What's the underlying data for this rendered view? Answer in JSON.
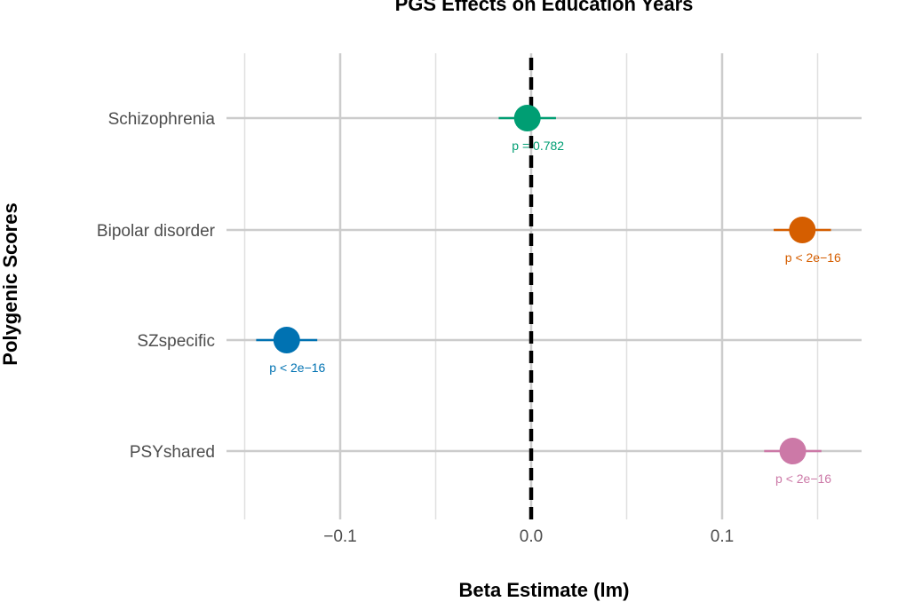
{
  "chart_data": {
    "type": "scatter",
    "title": "PGS Effects on Education Years",
    "xlabel": "Beta Estimate (lm)",
    "ylabel": "Polygenic Scores",
    "xlim": [
      -0.15,
      0.172
    ],
    "xticks": [
      -0.1,
      0.0,
      0.1
    ],
    "xtick_labels": [
      "−0.1",
      "0.0",
      "0.1"
    ],
    "reference_line": {
      "x": 0,
      "style": "dashed",
      "color": "#000000"
    },
    "grid": true,
    "points": [
      {
        "label": "Schizophrenia",
        "estimate": -0.002,
        "ci": [
          -0.017,
          0.013
        ],
        "p_text": "p  = 0.782",
        "color": "#009e73"
      },
      {
        "label": "Bipolar disorder",
        "estimate": 0.142,
        "ci": [
          0.127,
          0.157
        ],
        "p_text": "p  < 2e−16",
        "color": "#d55e00"
      },
      {
        "label": "SZspecific",
        "estimate": -0.128,
        "ci": [
          -0.144,
          -0.112
        ],
        "p_text": "p  < 2e−16",
        "color": "#0072b2"
      },
      {
        "label": "PSYshared",
        "estimate": 0.137,
        "ci": [
          0.122,
          0.152
        ],
        "p_text": "p  < 2e−16",
        "color": "#cc79a7"
      }
    ]
  }
}
